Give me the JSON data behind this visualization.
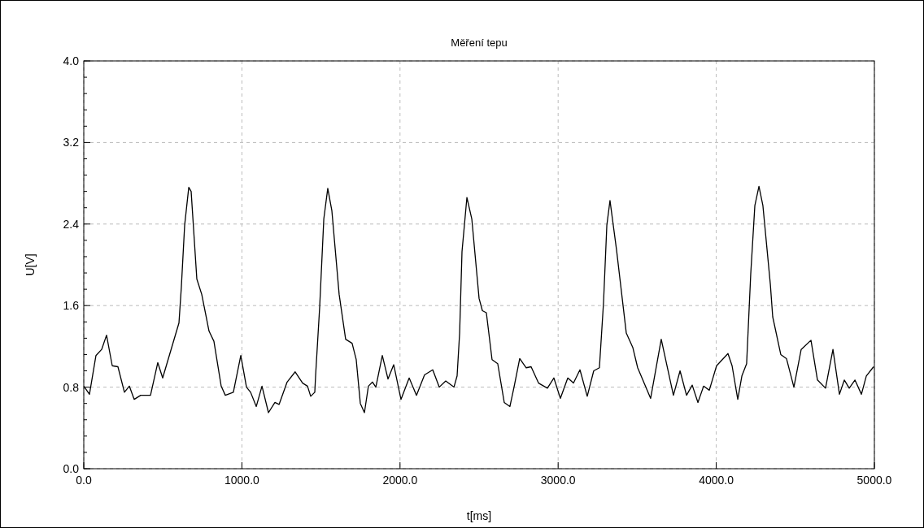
{
  "chart_data": {
    "type": "line",
    "title": "Měření tepu",
    "xlabel": "t[ms]",
    "ylabel": "U[V]",
    "xlim": [
      0,
      5000
    ],
    "ylim": [
      0,
      4
    ],
    "xticks": [
      {
        "value": 0,
        "label": "0.0"
      },
      {
        "value": 1000,
        "label": "1000.0"
      },
      {
        "value": 2000,
        "label": "2000.0"
      },
      {
        "value": 3000,
        "label": "3000.0"
      },
      {
        "value": 4000,
        "label": "4000.0"
      },
      {
        "value": 5000,
        "label": "5000.0"
      }
    ],
    "yticks": [
      {
        "value": 0,
        "label": "0.0"
      },
      {
        "value": 0.16,
        "label": null
      },
      {
        "value": 0.32,
        "label": null
      },
      {
        "value": 0.48,
        "label": null
      },
      {
        "value": 0.64,
        "label": null
      },
      {
        "value": 0.8,
        "label": "0.8"
      },
      {
        "value": 0.96,
        "label": null
      },
      {
        "value": 1.12,
        "label": null
      },
      {
        "value": 1.28,
        "label": null
      },
      {
        "value": 1.44,
        "label": null
      },
      {
        "value": 1.6,
        "label": "1.6"
      },
      {
        "value": 1.76,
        "label": null
      },
      {
        "value": 1.92,
        "label": null
      },
      {
        "value": 2.08,
        "label": null
      },
      {
        "value": 2.24,
        "label": null
      },
      {
        "value": 2.4,
        "label": "2.4"
      },
      {
        "value": 2.56,
        "label": null
      },
      {
        "value": 2.72,
        "label": null
      },
      {
        "value": 2.88,
        "label": null
      },
      {
        "value": 3.04,
        "label": null
      },
      {
        "value": 3.2,
        "label": "3.2"
      },
      {
        "value": 3.36,
        "label": null
      },
      {
        "value": 3.52,
        "label": null
      },
      {
        "value": 3.68,
        "label": null
      },
      {
        "value": 3.84,
        "label": null
      },
      {
        "value": 4,
        "label": "4.0"
      }
    ],
    "grid": true,
    "line_style": "solid",
    "x": [
      0,
      36,
      77,
      113,
      144,
      180,
      216,
      257,
      288,
      319,
      360,
      422,
      468,
      499,
      602,
      617,
      638,
      664,
      679,
      715,
      746,
      792,
      823,
      869,
      895,
      946,
      993,
      1029,
      1055,
      1091,
      1127,
      1168,
      1209,
      1235,
      1286,
      1337,
      1384,
      1415,
      1435,
      1461,
      1466,
      1492,
      1518,
      1543,
      1569,
      1615,
      1656,
      1697,
      1723,
      1749,
      1775,
      1800,
      1826,
      1847,
      1888,
      1924,
      1960,
      2006,
      2058,
      2104,
      2155,
      2207,
      2248,
      2289,
      2341,
      2361,
      2377,
      2392,
      2423,
      2454,
      2500,
      2521,
      2546,
      2582,
      2618,
      2659,
      2695,
      2721,
      2757,
      2798,
      2829,
      2876,
      2932,
      2973,
      3014,
      3061,
      3097,
      3138,
      3184,
      3225,
      3261,
      3287,
      3308,
      3328,
      3369,
      3431,
      3472,
      3503,
      3585,
      3652,
      3729,
      3771,
      3812,
      3848,
      3884,
      3920,
      3956,
      4002,
      4074,
      4100,
      4136,
      4162,
      4192,
      4218,
      4244,
      4270,
      4295,
      4342,
      4357,
      4408,
      4444,
      4491,
      4537,
      4599,
      4640,
      4691,
      4738,
      4779,
      4810,
      4841,
      4877,
      4918,
      4949,
      4995
    ],
    "series": [
      {
        "color": "#000000",
        "values": [
          0.81,
          0.73,
          1.11,
          1.17,
          1.31,
          1.01,
          1.0,
          0.75,
          0.81,
          0.68,
          0.72,
          0.72,
          1.04,
          0.89,
          1.43,
          1.78,
          2.39,
          2.76,
          2.72,
          1.86,
          1.71,
          1.35,
          1.25,
          0.81,
          0.72,
          0.75,
          1.11,
          0.8,
          0.75,
          0.61,
          0.81,
          0.55,
          0.65,
          0.63,
          0.85,
          0.95,
          0.84,
          0.81,
          0.71,
          0.75,
          0.91,
          1.59,
          2.45,
          2.75,
          2.53,
          1.71,
          1.27,
          1.23,
          1.07,
          0.64,
          0.55,
          0.81,
          0.85,
          0.8,
          1.11,
          0.88,
          1.02,
          0.68,
          0.89,
          0.72,
          0.92,
          0.97,
          0.8,
          0.86,
          0.8,
          0.91,
          1.33,
          2.13,
          2.66,
          2.45,
          1.67,
          1.55,
          1.53,
          1.07,
          1.03,
          0.65,
          0.61,
          0.8,
          1.08,
          0.99,
          1.0,
          0.84,
          0.79,
          0.89,
          0.69,
          0.89,
          0.84,
          0.97,
          0.71,
          0.96,
          0.99,
          1.63,
          2.39,
          2.63,
          2.15,
          1.33,
          1.19,
          0.99,
          0.69,
          1.27,
          0.72,
          0.96,
          0.72,
          0.82,
          0.65,
          0.81,
          0.77,
          1.01,
          1.13,
          1.01,
          0.68,
          0.91,
          1.03,
          1.91,
          2.58,
          2.77,
          2.58,
          1.81,
          1.49,
          1.12,
          1.08,
          0.8,
          1.17,
          1.26,
          0.87,
          0.79,
          1.17,
          0.73,
          0.87,
          0.79,
          0.87,
          0.73,
          0.91,
          1.0
        ]
      }
    ]
  }
}
